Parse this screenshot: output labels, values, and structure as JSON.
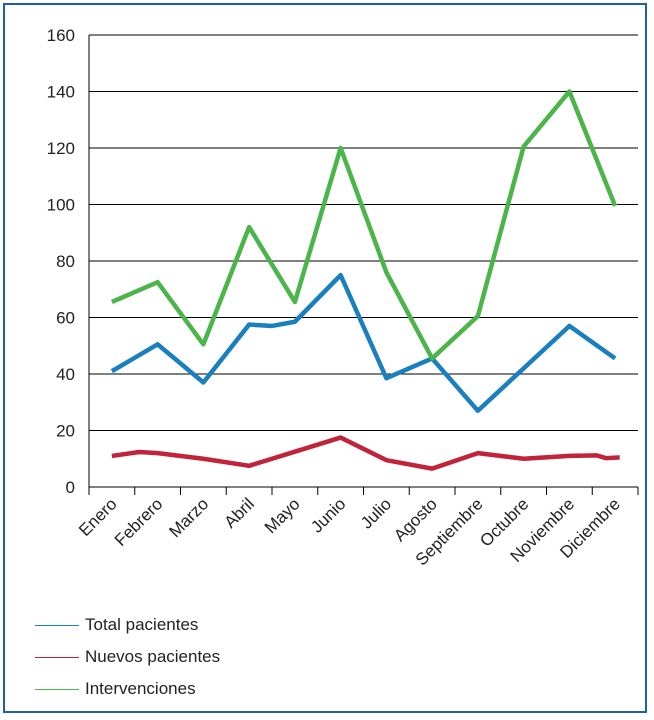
{
  "chart_data": {
    "type": "line",
    "categories": [
      "Enero",
      "Febrero",
      "Marzo",
      "Abril",
      "Mayo",
      "Junio",
      "Julio",
      "Agosto",
      "Septiembre",
      "Octubre",
      "Noviembre",
      "Diciembre"
    ],
    "ylim": [
      0,
      160
    ],
    "yticks": [
      0,
      20,
      40,
      60,
      80,
      100,
      120,
      140,
      160
    ],
    "grid": "horizontal",
    "legend_position": "bottom-left",
    "series": [
      {
        "name": "Total pacientes",
        "color": "#1a7fbf",
        "points": [
          [
            0,
            41
          ],
          [
            1,
            50.5
          ],
          [
            2,
            37
          ],
          [
            3,
            57.5
          ],
          [
            3.5,
            57
          ],
          [
            4,
            58.5
          ],
          [
            5,
            75
          ],
          [
            6,
            38.5
          ],
          [
            7,
            45.5
          ],
          [
            8,
            27
          ],
          [
            9,
            42
          ],
          [
            10,
            57
          ],
          [
            11,
            45.5
          ]
        ]
      },
      {
        "name": "Nuevos pacientes",
        "color": "#c0233a",
        "points": [
          [
            0,
            11
          ],
          [
            0.6,
            12.4
          ],
          [
            1,
            12
          ],
          [
            2,
            10
          ],
          [
            3,
            7.5
          ],
          [
            4,
            12.5
          ],
          [
            5,
            17.5
          ],
          [
            6,
            9.5
          ],
          [
            7,
            6.5
          ],
          [
            8,
            12
          ],
          [
            9,
            10
          ],
          [
            10,
            11
          ],
          [
            10.6,
            11.2
          ],
          [
            10.8,
            10.2
          ],
          [
            11.1,
            10.5
          ]
        ]
      },
      {
        "name": "Intervenciones",
        "color": "#4bb54a",
        "points": [
          [
            0,
            65.5
          ],
          [
            1,
            72.5
          ],
          [
            2,
            50.5
          ],
          [
            3,
            92
          ],
          [
            4,
            65.5
          ],
          [
            5,
            120
          ],
          [
            6,
            76
          ],
          [
            7,
            45.5
          ],
          [
            8,
            60.5
          ],
          [
            9,
            120.5
          ],
          [
            10,
            140
          ],
          [
            11,
            99.5
          ]
        ]
      }
    ]
  }
}
